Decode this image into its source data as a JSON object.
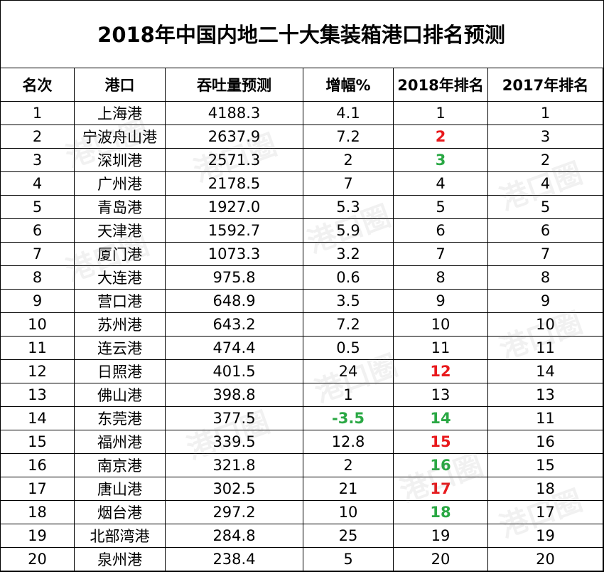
{
  "title": "2018年中国内地二十大集装箱港口排名预测",
  "headers": [
    "名次",
    "港口",
    "吞吐量预测",
    "增幅%",
    "2018年排名",
    "2017年排名"
  ],
  "rows": [
    {
      "rank": "1",
      "port": "上海港",
      "volume": "4188.3",
      "growth": "4.1",
      "rank2018": "1",
      "rank2017": "1"
    },
    {
      "rank": "2",
      "port": "宁波舟山港",
      "volume": "2637.9",
      "growth": "7.2",
      "rank2018": "2",
      "rank2017": "3"
    },
    {
      "rank": "3",
      "port": "深圳港",
      "volume": "2571.3",
      "growth": "2",
      "rank2018": "3",
      "rank2017": "2"
    },
    {
      "rank": "4",
      "port": "广州港",
      "volume": "2178.5",
      "growth": "7",
      "rank2018": "4",
      "rank2017": "4"
    },
    {
      "rank": "5",
      "port": "青岛港",
      "volume": "1927.0",
      "growth": "5.3",
      "rank2018": "5",
      "rank2017": "5"
    },
    {
      "rank": "6",
      "port": "天津港",
      "volume": "1592.7",
      "growth": "5.9",
      "rank2018": "6",
      "rank2017": "6"
    },
    {
      "rank": "7",
      "port": "厦门港",
      "volume": "1073.3",
      "growth": "3.2",
      "rank2018": "7",
      "rank2017": "7"
    },
    {
      "rank": "8",
      "port": "大连港",
      "volume": "975.8",
      "growth": "0.6",
      "rank2018": "8",
      "rank2017": "8"
    },
    {
      "rank": "9",
      "port": "营口港",
      "volume": "648.9",
      "growth": "3.5",
      "rank2018": "9",
      "rank2017": "9"
    },
    {
      "rank": "10",
      "port": "苏州港",
      "volume": "643.2",
      "growth": "7.2",
      "rank2018": "10",
      "rank2017": "10"
    },
    {
      "rank": "11",
      "port": "连云港",
      "volume": "474.4",
      "growth": "0.5",
      "rank2018": "11",
      "rank2017": "11"
    },
    {
      "rank": "12",
      "port": "日照港",
      "volume": "401.5",
      "growth": "24",
      "rank2018": "12",
      "rank2017": "14"
    },
    {
      "rank": "13",
      "port": "佛山港",
      "volume": "398.8",
      "growth": "1",
      "rank2018": "13",
      "rank2017": "13"
    },
    {
      "rank": "14",
      "port": "东莞港",
      "volume": "377.5",
      "growth": "-3.5",
      "rank2018": "14",
      "rank2017": "11"
    },
    {
      "rank": "15",
      "port": "福州港",
      "volume": "339.5",
      "growth": "12.8",
      "rank2018": "15",
      "rank2017": "16"
    },
    {
      "rank": "16",
      "port": "南京港",
      "volume": "321.8",
      "growth": "2",
      "rank2018": "16",
      "rank2017": "15"
    },
    {
      "rank": "17",
      "port": "唐山港",
      "volume": "302.5",
      "growth": "21",
      "rank2018": "17",
      "rank2017": "18"
    },
    {
      "rank": "18",
      "port": "烟台港",
      "volume": "297.2",
      "growth": "10",
      "rank2018": "18",
      "rank2017": "17"
    },
    {
      "rank": "19",
      "port": "北部湾港",
      "volume": "284.8",
      "growth": "25",
      "rank2018": "19",
      "rank2017": "19"
    },
    {
      "rank": "20",
      "port": "泉州港",
      "volume": "238.4",
      "growth": "5",
      "rank2018": "20",
      "rank2017": "20"
    }
  ],
  "highlights": {
    "red": "#e8191c",
    "green": "#2aa844",
    "red_rank2018_rows": [
      1,
      11,
      14,
      16
    ],
    "green_rank2018_rows": [
      2,
      13,
      15,
      17
    ],
    "green_growth_rows": [
      13
    ]
  },
  "watermark": "港口圈"
}
